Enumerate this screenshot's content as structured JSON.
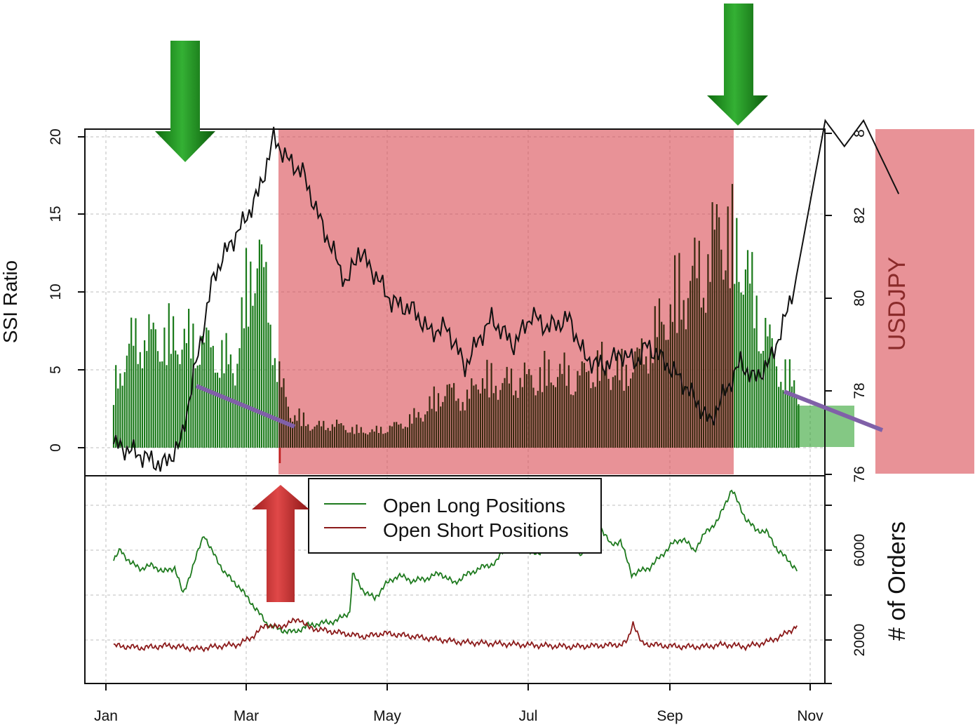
{
  "chart_data": [
    {
      "type": "bar",
      "panel": "top",
      "ylabel": "SSI Ratio",
      "y2label": "USDJPY",
      "ylim": [
        -1.7,
        20.5
      ],
      "y2lim": [
        76,
        84.2
      ],
      "y_ticks": [
        "0",
        "5",
        "10",
        "15",
        "20"
      ],
      "y2_ticks": [
        "76",
        "78",
        "80",
        "82",
        "8"
      ],
      "x_ticks": [
        "Jan",
        "Mar",
        "May",
        "Jul",
        "Sep",
        "Nov"
      ],
      "grid": true,
      "series": [
        {
          "name": "SSI Ratio",
          "kind": "bars",
          "color": "#1a7a1a",
          "y_knots": [
            [
              0,
              5
            ],
            [
              8,
              9
            ],
            [
              20,
              9.5
            ],
            [
              40,
              9
            ],
            [
              55,
              7
            ],
            [
              60,
              13
            ],
            [
              65,
              17.5
            ],
            [
              70,
              12
            ],
            [
              75,
              6
            ],
            [
              80,
              3
            ],
            [
              85,
              2.5
            ],
            [
              90,
              1.8
            ],
            [
              100,
              2
            ],
            [
              110,
              1.5
            ],
            [
              118,
              1.4
            ],
            [
              130,
              2
            ],
            [
              140,
              3
            ],
            [
              150,
              5
            ],
            [
              160,
              4
            ],
            [
              165,
              6
            ],
            [
              175,
              5.5
            ],
            [
              190,
              6
            ],
            [
              200,
              6.5
            ],
            [
              210,
              6
            ],
            [
              220,
              7
            ],
            [
              230,
              6.5
            ],
            [
              240,
              8
            ],
            [
              255,
              13
            ],
            [
              270,
              16
            ],
            [
              275,
              20
            ],
            [
              280,
              17
            ],
            [
              286,
              16
            ],
            [
              290,
              12
            ],
            [
              295,
              10
            ],
            [
              300,
              7
            ],
            [
              310,
              5
            ]
          ]
        },
        {
          "name": "USDJPY",
          "kind": "line",
          "color": "#111111",
          "y_knots": [
            [
              0,
              76.7
            ],
            [
              10,
              76.5
            ],
            [
              22,
              76.2
            ],
            [
              30,
              76.7
            ],
            [
              38,
              78.8
            ],
            [
              45,
              80.6
            ],
            [
              52,
              81.3
            ],
            [
              58,
              81.8
            ],
            [
              65,
              82.5
            ],
            [
              70,
              83.4
            ],
            [
              72,
              83.8
            ],
            [
              78,
              83.3
            ],
            [
              85,
              83
            ],
            [
              92,
              82
            ],
            [
              100,
              81
            ],
            [
              105,
              80.4
            ],
            [
              110,
              81.2
            ],
            [
              118,
              80.6
            ],
            [
              125,
              80
            ],
            [
              135,
              79.8
            ],
            [
              142,
              79.3
            ],
            [
              150,
              79.4
            ],
            [
              158,
              78.5
            ],
            [
              165,
              79.2
            ],
            [
              170,
              79.6
            ],
            [
              175,
              79.3
            ],
            [
              180,
              79
            ],
            [
              188,
              79.7
            ],
            [
              195,
              79.4
            ],
            [
              205,
              79.6
            ],
            [
              212,
              78.7
            ],
            [
              220,
              78.5
            ],
            [
              228,
              78.8
            ],
            [
              235,
              78.6
            ],
            [
              240,
              79
            ],
            [
              248,
              78.6
            ],
            [
              255,
              78.2
            ],
            [
              262,
              77.7
            ],
            [
              268,
              77.2
            ],
            [
              275,
              77.9
            ],
            [
              282,
              78.6
            ],
            [
              288,
              78.2
            ],
            [
              295,
              78.6
            ],
            [
              302,
              79.6
            ],
            [
              305,
              80.2
            ],
            [
              315,
              84.2
            ],
            [
              321,
              83.6
            ],
            [
              327,
              84.2
            ],
            [
              338,
              82.5
            ]
          ]
        }
      ]
    },
    {
      "type": "line",
      "panel": "bottom",
      "y2label": "# of Orders",
      "ylim": [
        100,
        8700
      ],
      "y2_ticks": [
        "2000",
        "6000"
      ],
      "grid": true,
      "legend": "top-left",
      "series": [
        {
          "name": "Open Long Positions",
          "color": "#1e7a1e",
          "y_knots": [
            [
              0,
              5600
            ],
            [
              5,
              6100
            ],
            [
              12,
              5500
            ],
            [
              20,
              5250
            ],
            [
              28,
              5400
            ],
            [
              36,
              5100
            ],
            [
              44,
              5300
            ],
            [
              50,
              4100
            ],
            [
              58,
              5500
            ],
            [
              65,
              6800
            ],
            [
              70,
              6100
            ],
            [
              75,
              5600
            ],
            [
              80,
              5050
            ],
            [
              90,
              4450
            ],
            [
              100,
              3650
            ],
            [
              110,
              2800
            ],
            [
              120,
              2500
            ],
            [
              130,
              2400
            ],
            [
              140,
              2700
            ],
            [
              150,
              2800
            ],
            [
              160,
              2900
            ],
            [
              170,
              3300
            ],
            [
              172,
              5000
            ],
            [
              180,
              4250
            ],
            [
              188,
              3900
            ],
            [
              195,
              4500
            ],
            [
              205,
              4950
            ],
            [
              215,
              4700
            ],
            [
              225,
              4800
            ],
            [
              235,
              5050
            ],
            [
              245,
              4600
            ],
            [
              255,
              5000
            ],
            [
              265,
              5300
            ],
            [
              275,
              5500
            ],
            [
              285,
              6500
            ],
            [
              292,
              6400
            ],
            [
              300,
              5950
            ],
            [
              308,
              6000
            ],
            [
              318,
              6600
            ],
            [
              325,
              7500
            ],
            [
              330,
              6950
            ],
            [
              335,
              5800
            ],
            [
              340,
              6100
            ],
            [
              345,
              6100
            ],
            [
              350,
              7200
            ],
            [
              358,
              6300
            ],
            [
              365,
              6500
            ],
            [
              373,
              5000
            ],
            [
              378,
              5100
            ],
            [
              386,
              5300
            ],
            [
              394,
              5800
            ],
            [
              402,
              6350
            ],
            [
              410,
              6600
            ],
            [
              418,
              6050
            ],
            [
              426,
              6850
            ],
            [
              435,
              7400
            ],
            [
              445,
              8800
            ],
            [
              455,
              7500
            ],
            [
              462,
              7000
            ],
            [
              470,
              6900
            ],
            [
              478,
              6100
            ],
            [
              486,
              5600
            ],
            [
              492,
              5200
            ]
          ]
        },
        {
          "name": "Open Short Positions",
          "color": "#8b1a1a",
          "y_knots": [
            [
              0,
              1800
            ],
            [
              20,
              1700
            ],
            [
              40,
              1800
            ],
            [
              60,
              1650
            ],
            [
              80,
              1800
            ],
            [
              90,
              1850
            ],
            [
              100,
              2200
            ],
            [
              110,
              2750
            ],
            [
              118,
              2600
            ],
            [
              126,
              2800
            ],
            [
              134,
              3000
            ],
            [
              140,
              2600
            ],
            [
              150,
              2500
            ],
            [
              160,
              2400
            ],
            [
              170,
              2300
            ],
            [
              180,
              2200
            ],
            [
              195,
              2350
            ],
            [
              210,
              2250
            ],
            [
              230,
              2100
            ],
            [
              250,
              1950
            ],
            [
              270,
              1900
            ],
            [
              290,
              1850
            ],
            [
              310,
              1800
            ],
            [
              330,
              1750
            ],
            [
              350,
              1800
            ],
            [
              366,
              1850
            ],
            [
              370,
              2000
            ],
            [
              374,
              2850
            ],
            [
              380,
              1900
            ],
            [
              395,
              1800
            ],
            [
              410,
              1750
            ],
            [
              425,
              1750
            ],
            [
              440,
              1850
            ],
            [
              455,
              1750
            ],
            [
              470,
              1950
            ],
            [
              480,
              2200
            ],
            [
              488,
              2500
            ],
            [
              492,
              2700
            ]
          ]
        }
      ]
    }
  ],
  "palette": {
    "bearish_zone": "#d94a52",
    "bullish_zone": "#1f9a1f",
    "trend_line": "#8060a8",
    "arrow_green": "#1f8a1f",
    "arrow_red": "#c0302e"
  }
}
